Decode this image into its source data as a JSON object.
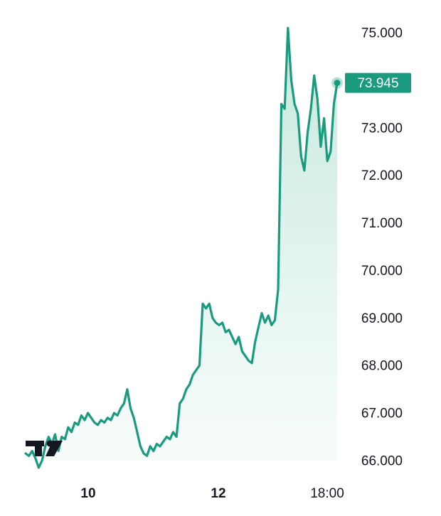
{
  "chart_data": {
    "type": "area",
    "x_ticks": [
      "10",
      "12",
      "18:00"
    ],
    "y_ticks": [
      "75.000",
      "73.000",
      "72.000",
      "71.000",
      "70.000",
      "69.000",
      "68.000",
      "67.000",
      "66.000"
    ],
    "ylim": [
      66.0,
      75.0
    ],
    "last_price_label": "73.945",
    "last_value": 73.945,
    "grid": false,
    "legend": "none",
    "logo": "TV",
    "colors": {
      "line": "#1a9b7f",
      "fill_top": "#c4e8db",
      "fill_bottom": "#f4fbf8",
      "badge": "#1a9b7f",
      "badge_text": "#ffffff",
      "axis_text": "#131722"
    },
    "series": [
      {
        "values": [
          66.15,
          66.1,
          66.2,
          66.05,
          65.85,
          66.0,
          66.3,
          66.5,
          66.35,
          66.55,
          66.2,
          66.5,
          66.45,
          66.7,
          66.6,
          66.8,
          66.75,
          66.95,
          66.85,
          67.0,
          66.9,
          66.8,
          66.75,
          66.85,
          66.8,
          66.9,
          66.85,
          67.0,
          66.95,
          67.1,
          67.2,
          67.5,
          67.1,
          66.9,
          66.6,
          66.3,
          66.15,
          66.1,
          66.3,
          66.2,
          66.35,
          66.3,
          66.4,
          66.5,
          66.45,
          66.6,
          66.5,
          67.2,
          67.3,
          67.5,
          67.6,
          67.8,
          67.9,
          68.0,
          69.3,
          69.2,
          69.3,
          69.0,
          68.9,
          68.85,
          68.9,
          68.7,
          68.75,
          68.6,
          68.45,
          68.6,
          68.3,
          68.2,
          68.1,
          68.05,
          68.5,
          68.8,
          69.1,
          68.9,
          69.05,
          68.85,
          68.95,
          69.6,
          73.5,
          73.4,
          75.1,
          74.0,
          73.5,
          73.3,
          72.4,
          72.1,
          72.9,
          73.4,
          74.1,
          73.6,
          72.6,
          73.2,
          72.3,
          72.5,
          73.5,
          73.945
        ]
      }
    ]
  }
}
